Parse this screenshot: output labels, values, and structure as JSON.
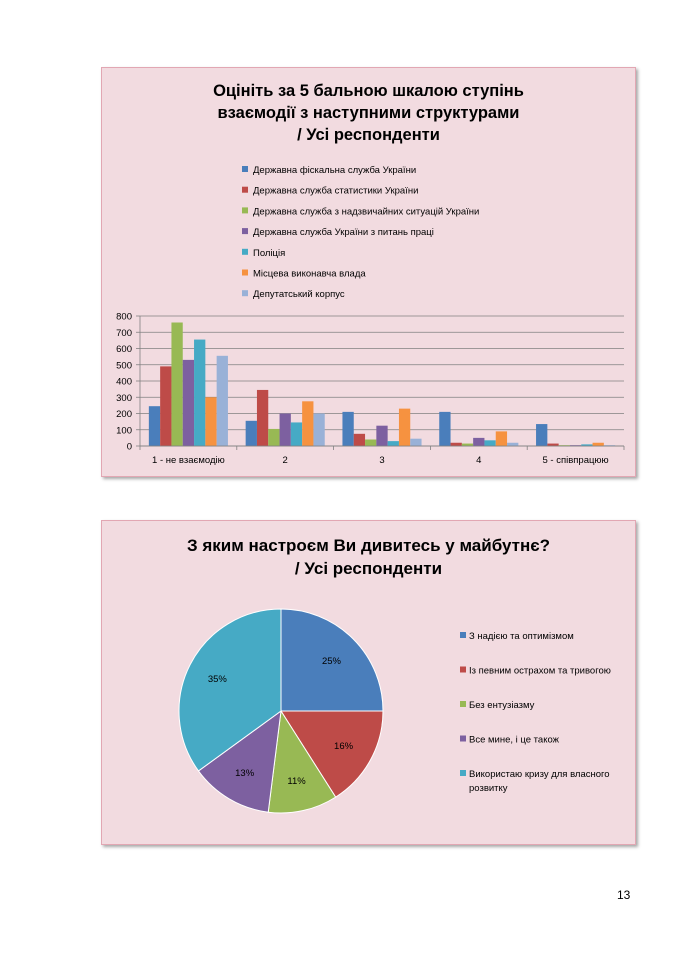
{
  "page_number": "13",
  "chart_data": [
    {
      "type": "bar",
      "title_lines": [
        "Оцініть за 5 бальною шкалою ступінь",
        "взаємодії з наступними структурами",
        "/ Усі респонденти"
      ],
      "categories": [
        "1 - не взаємодію",
        "2",
        "3",
        "4",
        "5 - співпрацюю"
      ],
      "ylim": [
        0,
        800
      ],
      "yticks": [
        "0",
        "100",
        "200",
        "300",
        "400",
        "500",
        "600",
        "700",
        "800"
      ],
      "grid": true,
      "legend_position": "top",
      "series": [
        {
          "name": "Державна фіскальна служба України",
          "color": "#4a7ebb",
          "values": [
            245,
            155,
            210,
            210,
            135
          ]
        },
        {
          "name": "Державна служба статистики України",
          "color": "#be4b48",
          "values": [
            490,
            345,
            75,
            20,
            15
          ]
        },
        {
          "name": "Державна служба з надзвичайних ситуацій України",
          "color": "#98b954",
          "values": [
            760,
            105,
            40,
            15,
            5
          ]
        },
        {
          "name": "Державна служба України з питань праці",
          "color": "#7d60a0",
          "values": [
            530,
            200,
            125,
            50,
            5
          ]
        },
        {
          "name": "Поліція",
          "color": "#46aac5",
          "values": [
            655,
            145,
            30,
            35,
            10
          ]
        },
        {
          "name": "Місцева виконавча влада",
          "color": "#f69240",
          "values": [
            300,
            275,
            230,
            90,
            20
          ]
        },
        {
          "name": "Депутатський корпус",
          "color": "#99b1d7",
          "values": [
            555,
            200,
            45,
            20,
            5
          ]
        }
      ]
    },
    {
      "type": "pie",
      "title_lines": [
        "З яким настроєм Ви дивитесь у майбутнє?",
        "/ Усі респонденти"
      ],
      "legend_position": "right",
      "slices": [
        {
          "name": "З надією та оптимізмом",
          "value": 25,
          "label": "25%",
          "color": "#4a7ebb"
        },
        {
          "name": "Із певним острахом та тривогою",
          "value": 16,
          "label": "16%",
          "color": "#be4b48"
        },
        {
          "name": "Без ентузіазму",
          "value": 11,
          "label": "11%",
          "color": "#98b954"
        },
        {
          "name": "Все мине, і це також",
          "value": 13,
          "label": "13%",
          "color": "#7d60a0"
        },
        {
          "name": "Використаю кризу для власного розвитку",
          "name_lines": [
            "Використаю кризу для власного",
            "розвитку"
          ],
          "value": 35,
          "label": "35%",
          "color": "#46aac5"
        }
      ]
    }
  ]
}
